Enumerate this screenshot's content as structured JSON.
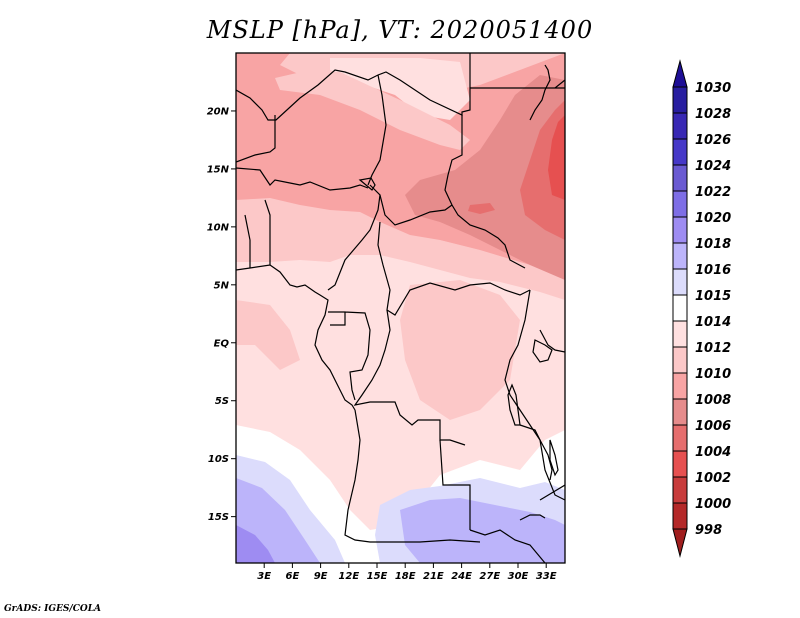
{
  "title": "MSLP [hPa], VT: 2020051400",
  "footer": "GrADS: IGES/COLA",
  "map": {
    "variable": "MSLP",
    "units": "hPa",
    "valid_time": "2020051400",
    "lon_range": [
      0,
      35
    ],
    "lat_range": [
      -19,
      25
    ],
    "lat_ticks": [
      {
        "lat": 20,
        "label": "20N"
      },
      {
        "lat": 15,
        "label": "15N"
      },
      {
        "lat": 10,
        "label": "10N"
      },
      {
        "lat": 5,
        "label": "5N"
      },
      {
        "lat": 0,
        "label": "EQ"
      },
      {
        "lat": -5,
        "label": "5S"
      },
      {
        "lat": -10,
        "label": "10S"
      },
      {
        "lat": -15,
        "label": "15S"
      }
    ],
    "lon_ticks": [
      {
        "lon": 3,
        "label": "3E"
      },
      {
        "lon": 6,
        "label": "6E"
      },
      {
        "lon": 9,
        "label": "9E"
      },
      {
        "lon": 12,
        "label": "12E"
      },
      {
        "lon": 15,
        "label": "15E"
      },
      {
        "lon": 18,
        "label": "18E"
      },
      {
        "lon": 21,
        "label": "21E"
      },
      {
        "lon": 24,
        "label": "24E"
      },
      {
        "lon": 27,
        "label": "27E"
      },
      {
        "lon": 30,
        "label": "30E"
      },
      {
        "lon": 33,
        "label": "33E"
      }
    ]
  },
  "colorbar": {
    "orientation": "vertical",
    "placement": "right",
    "labels": [
      "1030",
      "1028",
      "1026",
      "1024",
      "1022",
      "1020",
      "1018",
      "1016",
      "1015",
      "1014",
      "1012",
      "1010",
      "1008",
      "1006",
      "1004",
      "1002",
      "1000",
      "998"
    ],
    "colors": [
      "#1e0f96",
      "#281ea0",
      "#3828b4",
      "#4638c8",
      "#6a5ad2",
      "#7e6ee6",
      "#9e8cf2",
      "#bcb4fa",
      "#dcdcfc",
      "#ffffff",
      "#ffe0e0",
      "#fcc8c8",
      "#f8a4a4",
      "#e68c8c",
      "#e66e6e",
      "#e65050",
      "#c83c3c",
      "#b42828",
      "#a01e1e"
    ]
  },
  "regions": [
    {
      "name": "high-pressure-sw",
      "value_hint": "1018-1020",
      "color": "#9e8cf2"
    },
    {
      "name": "high-pressure-south",
      "value_hint": "1016-1018",
      "color": "#bcb4fa"
    },
    {
      "name": "band-1015-1016",
      "color": "#dcdcfc"
    },
    {
      "name": "band-1014-1015",
      "color": "#ffffff"
    },
    {
      "name": "band-1012-1014",
      "color": "#ffe0e0"
    },
    {
      "name": "band-1010-1012",
      "color": "#fcc8c8"
    },
    {
      "name": "band-1008-1010",
      "color": "#f8a4a4"
    },
    {
      "name": "band-1006-1008",
      "color": "#e68c8c"
    },
    {
      "name": "band-1004-1006",
      "color": "#e66e6e"
    },
    {
      "name": "band-1002-1004",
      "color": "#e65050"
    }
  ]
}
